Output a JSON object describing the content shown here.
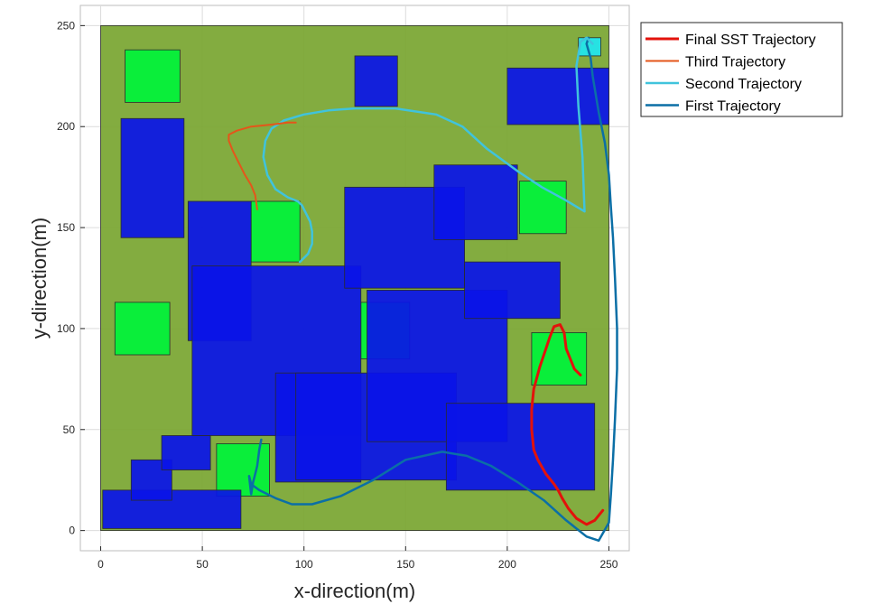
{
  "chart_data": {
    "type": "line",
    "title": "",
    "xlabel": "x-direction(m)",
    "ylabel": "y-direction(m)",
    "xlim": [
      -10,
      260
    ],
    "ylim": [
      -10,
      260
    ],
    "xticks": [
      0,
      50,
      100,
      150,
      200,
      250
    ],
    "yticks": [
      0,
      50,
      100,
      150,
      200,
      250
    ],
    "grid": true,
    "legend_position": "outside-top-right",
    "environment": {
      "area": {
        "x0": 0,
        "x1": 250,
        "y0": 0,
        "y1": 250,
        "color": "#78a530"
      },
      "obstacles_color": "#0a14e8",
      "goal_regions_color": "#00f33a",
      "target_region_color": "#1fe6f0",
      "obstacles": [
        {
          "x0": 1,
          "x1": 69,
          "y0": 1,
          "y1": 20
        },
        {
          "x0": 15,
          "x1": 35,
          "y0": 15,
          "y1": 35
        },
        {
          "x0": 30,
          "x1": 54,
          "y0": 30,
          "y1": 47
        },
        {
          "x0": 10,
          "x1": 41,
          "y0": 145,
          "y1": 204
        },
        {
          "x0": 43,
          "x1": 74,
          "y0": 94,
          "y1": 163
        },
        {
          "x0": 45,
          "x1": 128,
          "y0": 47,
          "y1": 131
        },
        {
          "x0": 86,
          "x1": 128,
          "y0": 24,
          "y1": 78
        },
        {
          "x0": 96,
          "x1": 175,
          "y0": 25,
          "y1": 78
        },
        {
          "x0": 120,
          "x1": 179,
          "y0": 120,
          "y1": 170
        },
        {
          "x0": 164,
          "x1": 205,
          "y0": 144,
          "y1": 181
        },
        {
          "x0": 131,
          "x1": 200,
          "y0": 44,
          "y1": 119
        },
        {
          "x0": 179,
          "x1": 226,
          "y0": 105,
          "y1": 133
        },
        {
          "x0": 170,
          "x1": 243,
          "y0": 20,
          "y1": 63
        },
        {
          "x0": 125,
          "x1": 146,
          "y0": 210,
          "y1": 235
        },
        {
          "x0": 200,
          "x1": 250,
          "y0": 201,
          "y1": 229
        }
      ],
      "goal_regions": [
        {
          "x0": 12,
          "x1": 39,
          "y0": 212,
          "y1": 238
        },
        {
          "x0": 7,
          "x1": 34,
          "y0": 87,
          "y1": 113
        },
        {
          "x0": 74,
          "x1": 98,
          "y0": 133,
          "y1": 163
        },
        {
          "x0": 128,
          "x1": 152,
          "y0": 85,
          "y1": 113
        },
        {
          "x0": 206,
          "x1": 229,
          "y0": 147,
          "y1": 173
        },
        {
          "x0": 212,
          "x1": 239,
          "y0": 72,
          "y1": 98
        },
        {
          "x0": 57,
          "x1": 83,
          "y0": 17,
          "y1": 43
        }
      ],
      "target_region": {
        "x0": 235,
        "x1": 246,
        "y0": 235,
        "y1": 244
      }
    },
    "series": [
      {
        "name": "Final SST Trajectory",
        "color": "#e3120b",
        "width": 3,
        "x": [
          236,
          233,
          231,
          229,
          228,
          226,
          223,
          221,
          219,
          216,
          213,
          212,
          212,
          213,
          215,
          219,
          223,
          225,
          227,
          230,
          234,
          239,
          243,
          247
        ],
        "y": [
          77,
          80,
          85,
          90,
          98,
          102,
          101,
          96,
          90,
          81,
          70,
          60,
          50,
          40,
          35,
          28,
          23,
          20,
          16,
          11,
          6,
          3,
          5,
          10
        ]
      },
      {
        "name": "Third Trajectory",
        "color": "#e4561a",
        "width": 2,
        "x": [
          96,
          92,
          84,
          74,
          67,
          63,
          63,
          65,
          68,
          71,
          74,
          76,
          77
        ],
        "y": [
          202,
          202,
          201,
          200,
          198,
          196,
          193,
          188,
          182,
          176,
          171,
          166,
          159
        ]
      },
      {
        "name": "Second Trajectory",
        "color": "#40c3dc",
        "width": 2.5,
        "x": [
          98,
          102,
          104,
          104,
          103,
          101,
          99,
          97,
          92,
          86,
          82,
          80,
          81,
          84,
          90,
          100,
          112,
          125,
          145,
          165,
          178,
          190,
          205,
          217,
          228,
          238,
          237,
          235,
          234,
          236,
          239,
          242
        ],
        "y": [
          133,
          137,
          142,
          148,
          153,
          157,
          161,
          163,
          165,
          169,
          176,
          185,
          193,
          199,
          203,
          206,
          208,
          209,
          209,
          206,
          200,
          189,
          178,
          170,
          164,
          158,
          185,
          210,
          230,
          242,
          244,
          241
        ]
      },
      {
        "name": "First Trajectory",
        "color": "#0b6fa6",
        "width": 2.5,
        "x": [
          79,
          78,
          77,
          76,
          75,
          74,
          73,
          74,
          78,
          86,
          94,
          104,
          118,
          134,
          150,
          168,
          180,
          192,
          205,
          218,
          229,
          239,
          245,
          250,
          251,
          252,
          253,
          254,
          254,
          253,
          252,
          251,
          250,
          248,
          245,
          242,
          241,
          239,
          240
        ],
        "y": [
          45,
          40,
          32,
          28,
          24,
          18,
          27,
          23,
          20,
          16,
          13,
          13,
          17,
          25,
          35,
          39,
          37,
          32,
          24,
          15,
          5,
          -3,
          -5,
          4,
          18,
          35,
          55,
          80,
          100,
          125,
          145,
          160,
          176,
          192,
          207,
          225,
          234,
          241,
          244
        ]
      }
    ]
  }
}
